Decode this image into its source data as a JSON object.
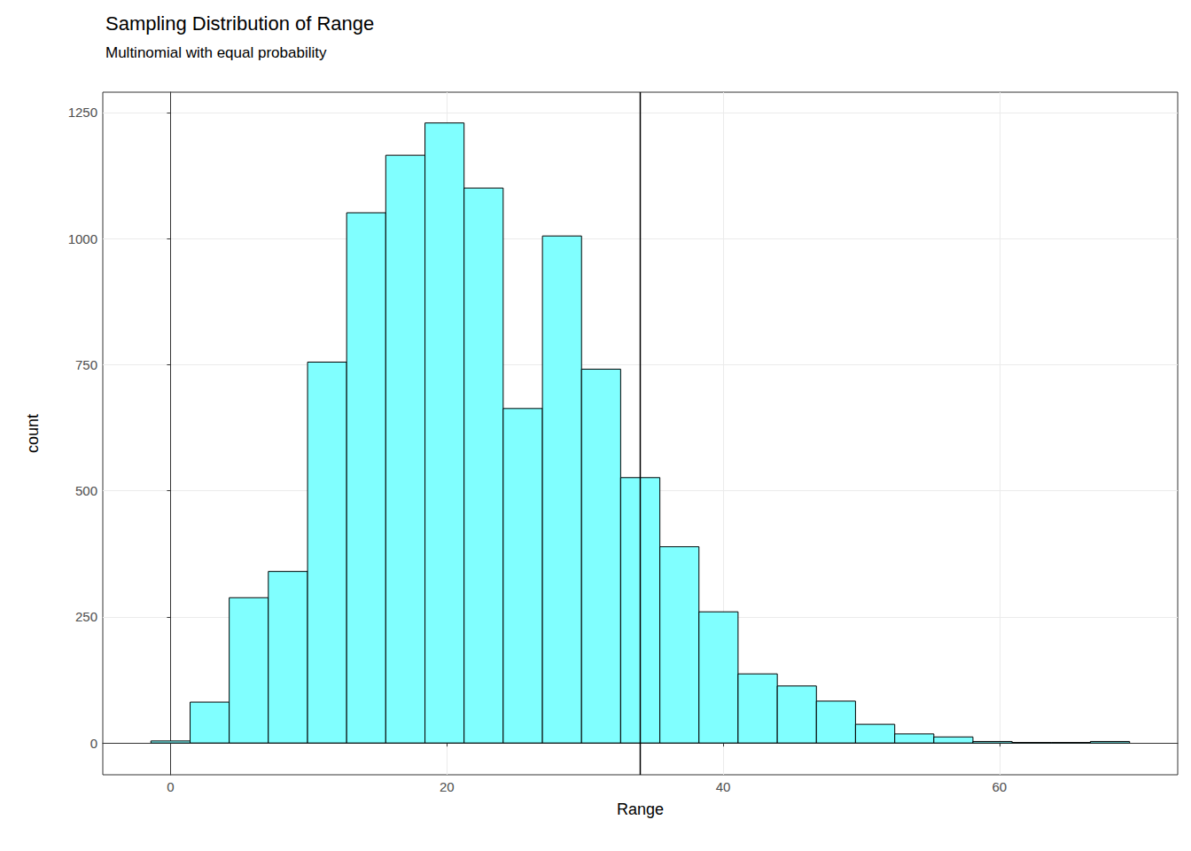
{
  "chart_data": {
    "type": "histogram",
    "title": "Sampling Distribution of Range",
    "subtitle": "Multinomial with equal probability",
    "x_label": "Range",
    "y_label": "count",
    "bins": [
      -1.42,
      1.42,
      4.25,
      7.08,
      9.92,
      12.75,
      15.58,
      18.42,
      21.25,
      24.08,
      26.92,
      29.75,
      32.58,
      35.42,
      38.25,
      41.08,
      43.92,
      46.75,
      49.58,
      52.42,
      55.25,
      58.08,
      60.92,
      63.75,
      66.58,
      69.42
    ],
    "values": [
      4,
      81,
      288,
      340,
      755,
      1051,
      1165,
      1229,
      1100,
      663,
      1005,
      741,
      526,
      389,
      260,
      137,
      113,
      83,
      37,
      18,
      12,
      3,
      1,
      1,
      3
    ],
    "vline": 34,
    "color": "#80ffff",
    "xlim": [
      -4.9,
      72.9
    ],
    "xticks": [
      0,
      20,
      40,
      60
    ],
    "ylim": [
      -63,
      1290
    ],
    "yticks": [
      0,
      250,
      500,
      750,
      1000,
      1250
    ],
    "grid": true
  }
}
